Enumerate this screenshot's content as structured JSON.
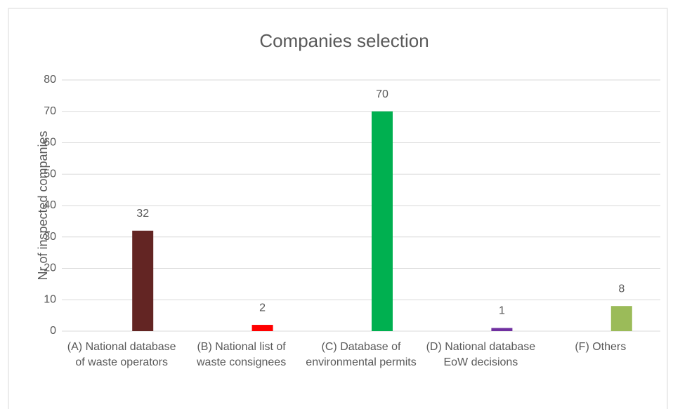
{
  "chart_data": {
    "type": "bar",
    "title": "Companies selection",
    "y_label": "Nr of inspected companies",
    "categories": [
      "(A) National database of waste operators",
      "(B) National list of waste consignees",
      "(C) Database of environmental permits",
      "(D) National database EoW decisions",
      "(F) Others"
    ],
    "values": [
      32,
      2,
      70,
      1,
      8
    ],
    "colors": [
      "#632523",
      "#ff0000",
      "#00b050",
      "#7030a0",
      "#9bbb59"
    ],
    "ylim": [
      0,
      80
    ],
    "yticks": [
      0,
      10,
      20,
      30,
      40,
      50,
      60,
      70,
      80
    ],
    "grid": true
  }
}
